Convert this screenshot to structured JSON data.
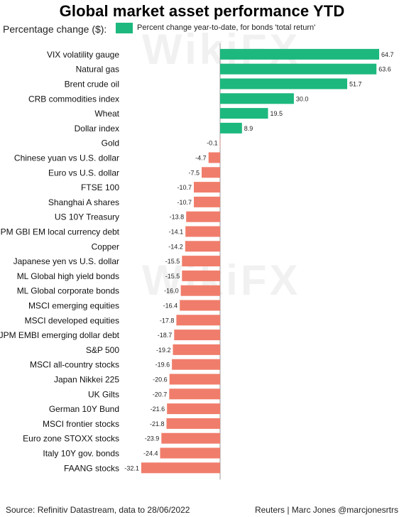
{
  "title": "Global market asset performance YTD",
  "subtitle": "Percentage change ($):",
  "legend_label": "Percent change year-to-date, for bonds 'total return'",
  "footer": {
    "source": "Source: Refinitiv Datastream, data to 28/06/2022",
    "credit": "Reuters | Marc Jones @marcjonesrtrs"
  },
  "watermark": "WikiFX",
  "colors": {
    "positive": "#1db87e",
    "negative": "#f07d6b"
  },
  "chart_data": {
    "type": "bar",
    "orientation": "horizontal",
    "title": "Global market asset performance YTD",
    "xlim": [
      -35,
      70
    ],
    "categories": [
      "VIX volatility gauge",
      "Natural gas",
      "Brent crude oil",
      "CRB commodities index",
      "Wheat",
      "Dollar index",
      "Gold",
      "Chinese yuan vs U.S. dollar",
      "Euro vs U.S. dollar",
      "FTSE 100",
      "Shanghai A shares",
      "US 10Y Treasury",
      "JPM GBI EM local currency debt",
      "Copper",
      "Japanese yen vs U.S. dollar",
      "ML Global high yield bonds",
      "ML Global corporate bonds",
      "MSCI emerging equities",
      "MSCI developed equities",
      "JPM EMBI emerging dollar debt",
      "S&P 500",
      "MSCI all-country stocks",
      "Japan Nikkei 225",
      "UK Gilts",
      "German 10Y Bund",
      "MSCI frontier stocks",
      "Euro zone STOXX stocks",
      "Italy 10Y gov. bonds",
      "FAANG stocks"
    ],
    "values": [
      64.7,
      63.6,
      51.7,
      30.0,
      19.5,
      8.9,
      -0.1,
      -4.7,
      -7.5,
      -10.7,
      -10.7,
      -13.8,
      -14.1,
      -14.2,
      -15.5,
      -15.5,
      -16.0,
      -16.4,
      -17.8,
      -18.7,
      -19.2,
      -19.6,
      -20.6,
      -20.7,
      -21.6,
      -21.8,
      -23.9,
      -24.4,
      -32.1
    ],
    "value_labels": [
      "64.7",
      "63.6",
      "51.7",
      "30.0",
      "19.5",
      "8.9",
      "-0.1",
      "-4.7",
      "-7.5",
      "-10.7",
      "-10.7",
      "-13.8",
      "-14.1",
      "-14.2",
      "-15.5",
      "-15.5",
      "-16.0",
      "-16.4",
      "-17.8",
      "-18.7",
      "-19.2",
      "-19.6",
      "-20.6",
      "-20.7",
      "-21.6",
      "-21.8",
      "-23.9",
      "-24.4",
      "-32.1"
    ]
  }
}
